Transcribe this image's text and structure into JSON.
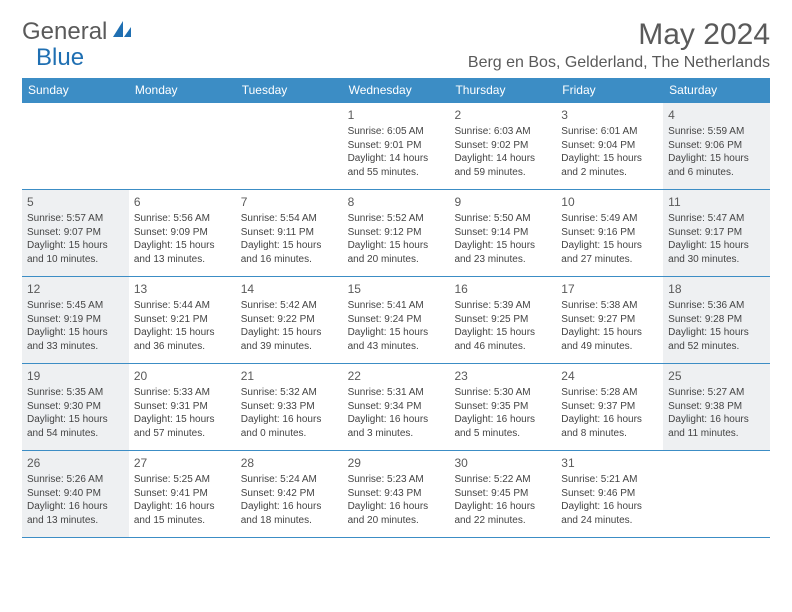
{
  "brand": {
    "name_part1": "General",
    "name_part2": "Blue"
  },
  "colors": {
    "header_bg": "#3c8dc5",
    "shaded_bg": "#eef0f2",
    "border": "#3c8dc5",
    "text": "#444444",
    "title_text": "#5a5a5a",
    "brand_blue": "#1f6fb2"
  },
  "title": "May 2024",
  "location": "Berg en Bos, Gelderland, The Netherlands",
  "day_headers": [
    "Sunday",
    "Monday",
    "Tuesday",
    "Wednesday",
    "Thursday",
    "Friday",
    "Saturday"
  ],
  "weeks": [
    [
      {
        "n": "",
        "sunrise": "",
        "sunset": "",
        "daylight": ""
      },
      {
        "n": "",
        "sunrise": "",
        "sunset": "",
        "daylight": ""
      },
      {
        "n": "",
        "sunrise": "",
        "sunset": "",
        "daylight": ""
      },
      {
        "n": "1",
        "sunrise": "Sunrise: 6:05 AM",
        "sunset": "Sunset: 9:01 PM",
        "daylight": "Daylight: 14 hours and 55 minutes."
      },
      {
        "n": "2",
        "sunrise": "Sunrise: 6:03 AM",
        "sunset": "Sunset: 9:02 PM",
        "daylight": "Daylight: 14 hours and 59 minutes."
      },
      {
        "n": "3",
        "sunrise": "Sunrise: 6:01 AM",
        "sunset": "Sunset: 9:04 PM",
        "daylight": "Daylight: 15 hours and 2 minutes."
      },
      {
        "n": "4",
        "sunrise": "Sunrise: 5:59 AM",
        "sunset": "Sunset: 9:06 PM",
        "daylight": "Daylight: 15 hours and 6 minutes."
      }
    ],
    [
      {
        "n": "5",
        "sunrise": "Sunrise: 5:57 AM",
        "sunset": "Sunset: 9:07 PM",
        "daylight": "Daylight: 15 hours and 10 minutes."
      },
      {
        "n": "6",
        "sunrise": "Sunrise: 5:56 AM",
        "sunset": "Sunset: 9:09 PM",
        "daylight": "Daylight: 15 hours and 13 minutes."
      },
      {
        "n": "7",
        "sunrise": "Sunrise: 5:54 AM",
        "sunset": "Sunset: 9:11 PM",
        "daylight": "Daylight: 15 hours and 16 minutes."
      },
      {
        "n": "8",
        "sunrise": "Sunrise: 5:52 AM",
        "sunset": "Sunset: 9:12 PM",
        "daylight": "Daylight: 15 hours and 20 minutes."
      },
      {
        "n": "9",
        "sunrise": "Sunrise: 5:50 AM",
        "sunset": "Sunset: 9:14 PM",
        "daylight": "Daylight: 15 hours and 23 minutes."
      },
      {
        "n": "10",
        "sunrise": "Sunrise: 5:49 AM",
        "sunset": "Sunset: 9:16 PM",
        "daylight": "Daylight: 15 hours and 27 minutes."
      },
      {
        "n": "11",
        "sunrise": "Sunrise: 5:47 AM",
        "sunset": "Sunset: 9:17 PM",
        "daylight": "Daylight: 15 hours and 30 minutes."
      }
    ],
    [
      {
        "n": "12",
        "sunrise": "Sunrise: 5:45 AM",
        "sunset": "Sunset: 9:19 PM",
        "daylight": "Daylight: 15 hours and 33 minutes."
      },
      {
        "n": "13",
        "sunrise": "Sunrise: 5:44 AM",
        "sunset": "Sunset: 9:21 PM",
        "daylight": "Daylight: 15 hours and 36 minutes."
      },
      {
        "n": "14",
        "sunrise": "Sunrise: 5:42 AM",
        "sunset": "Sunset: 9:22 PM",
        "daylight": "Daylight: 15 hours and 39 minutes."
      },
      {
        "n": "15",
        "sunrise": "Sunrise: 5:41 AM",
        "sunset": "Sunset: 9:24 PM",
        "daylight": "Daylight: 15 hours and 43 minutes."
      },
      {
        "n": "16",
        "sunrise": "Sunrise: 5:39 AM",
        "sunset": "Sunset: 9:25 PM",
        "daylight": "Daylight: 15 hours and 46 minutes."
      },
      {
        "n": "17",
        "sunrise": "Sunrise: 5:38 AM",
        "sunset": "Sunset: 9:27 PM",
        "daylight": "Daylight: 15 hours and 49 minutes."
      },
      {
        "n": "18",
        "sunrise": "Sunrise: 5:36 AM",
        "sunset": "Sunset: 9:28 PM",
        "daylight": "Daylight: 15 hours and 52 minutes."
      }
    ],
    [
      {
        "n": "19",
        "sunrise": "Sunrise: 5:35 AM",
        "sunset": "Sunset: 9:30 PM",
        "daylight": "Daylight: 15 hours and 54 minutes."
      },
      {
        "n": "20",
        "sunrise": "Sunrise: 5:33 AM",
        "sunset": "Sunset: 9:31 PM",
        "daylight": "Daylight: 15 hours and 57 minutes."
      },
      {
        "n": "21",
        "sunrise": "Sunrise: 5:32 AM",
        "sunset": "Sunset: 9:33 PM",
        "daylight": "Daylight: 16 hours and 0 minutes."
      },
      {
        "n": "22",
        "sunrise": "Sunrise: 5:31 AM",
        "sunset": "Sunset: 9:34 PM",
        "daylight": "Daylight: 16 hours and 3 minutes."
      },
      {
        "n": "23",
        "sunrise": "Sunrise: 5:30 AM",
        "sunset": "Sunset: 9:35 PM",
        "daylight": "Daylight: 16 hours and 5 minutes."
      },
      {
        "n": "24",
        "sunrise": "Sunrise: 5:28 AM",
        "sunset": "Sunset: 9:37 PM",
        "daylight": "Daylight: 16 hours and 8 minutes."
      },
      {
        "n": "25",
        "sunrise": "Sunrise: 5:27 AM",
        "sunset": "Sunset: 9:38 PM",
        "daylight": "Daylight: 16 hours and 11 minutes."
      }
    ],
    [
      {
        "n": "26",
        "sunrise": "Sunrise: 5:26 AM",
        "sunset": "Sunset: 9:40 PM",
        "daylight": "Daylight: 16 hours and 13 minutes."
      },
      {
        "n": "27",
        "sunrise": "Sunrise: 5:25 AM",
        "sunset": "Sunset: 9:41 PM",
        "daylight": "Daylight: 16 hours and 15 minutes."
      },
      {
        "n": "28",
        "sunrise": "Sunrise: 5:24 AM",
        "sunset": "Sunset: 9:42 PM",
        "daylight": "Daylight: 16 hours and 18 minutes."
      },
      {
        "n": "29",
        "sunrise": "Sunrise: 5:23 AM",
        "sunset": "Sunset: 9:43 PM",
        "daylight": "Daylight: 16 hours and 20 minutes."
      },
      {
        "n": "30",
        "sunrise": "Sunrise: 5:22 AM",
        "sunset": "Sunset: 9:45 PM",
        "daylight": "Daylight: 16 hours and 22 minutes."
      },
      {
        "n": "31",
        "sunrise": "Sunrise: 5:21 AM",
        "sunset": "Sunset: 9:46 PM",
        "daylight": "Daylight: 16 hours and 24 minutes."
      },
      {
        "n": "",
        "sunrise": "",
        "sunset": "",
        "daylight": ""
      }
    ]
  ]
}
